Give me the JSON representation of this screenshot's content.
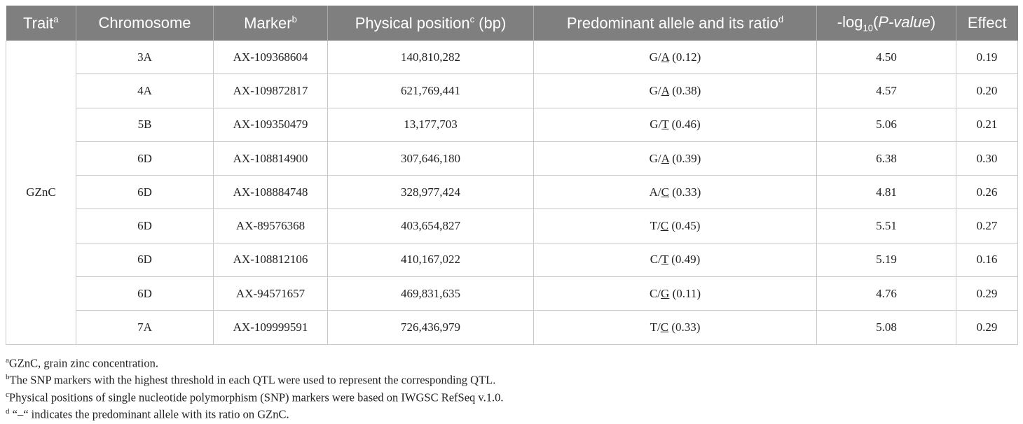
{
  "headers": {
    "trait": "Trait",
    "trait_sup": "a",
    "chromosome": "Chromosome",
    "marker": "Marker",
    "marker_sup": "b",
    "position": "Physical position",
    "position_sup": "c",
    "position_unit": " (bp)",
    "allele": "Predominant allele and its ratio",
    "allele_sup": "d",
    "logp_prefix": "-log",
    "logp_sub": "10",
    "logp_open": "(",
    "logp_italic": "P-value",
    "logp_close": ")",
    "effect": "Effect"
  },
  "trait_value": "GZnC",
  "rows": [
    {
      "chromosome": "3A",
      "marker": "AX-109368604",
      "position": "140,810,282",
      "allele_pre": "G/",
      "allele_u": "A",
      "allele_ratio": " (0.12)",
      "logp": "4.50",
      "effect": "0.19"
    },
    {
      "chromosome": "4A",
      "marker": "AX-109872817",
      "position": "621,769,441",
      "allele_pre": "G/",
      "allele_u": "A",
      "allele_ratio": " (0.38)",
      "logp": "4.57",
      "effect": "0.20"
    },
    {
      "chromosome": "5B",
      "marker": "AX-109350479",
      "position": "13,177,703",
      "allele_pre": "G/",
      "allele_u": "T",
      "allele_ratio": " (0.46)",
      "logp": "5.06",
      "effect": "0.21"
    },
    {
      "chromosome": "6D",
      "marker": "AX-108814900",
      "position": "307,646,180",
      "allele_pre": "G/",
      "allele_u": "A",
      "allele_ratio": " (0.39)",
      "logp": "6.38",
      "effect": "0.30"
    },
    {
      "chromosome": "6D",
      "marker": "AX-108884748",
      "position": "328,977,424",
      "allele_pre": "A/",
      "allele_u": "C",
      "allele_ratio": " (0.33)",
      "logp": "4.81",
      "effect": "0.26"
    },
    {
      "chromosome": "6D",
      "marker": "AX-89576368",
      "position": "403,654,827",
      "allele_pre": "T/",
      "allele_u": "C",
      "allele_ratio": " (0.45)",
      "logp": "5.51",
      "effect": "0.27"
    },
    {
      "chromosome": "6D",
      "marker": "AX-108812106",
      "position": "410,167,022",
      "allele_pre": "C/",
      "allele_u": "T",
      "allele_ratio": " (0.49)",
      "logp": "5.19",
      "effect": "0.16"
    },
    {
      "chromosome": "6D",
      "marker": "AX-94571657",
      "position": "469,831,635",
      "allele_pre": "C/",
      "allele_u": "G",
      "allele_ratio": " (0.11)",
      "logp": "4.76",
      "effect": "0.29"
    },
    {
      "chromosome": "7A",
      "marker": "AX-109999591",
      "position": "726,436,979",
      "allele_pre": "T/",
      "allele_u": "C",
      "allele_ratio": " (0.33)",
      "logp": "5.08",
      "effect": "0.29"
    }
  ],
  "footnotes": [
    {
      "sup": "a",
      "text": "GZnC, grain zinc concentration."
    },
    {
      "sup": "b",
      "text": "The SNP markers with the highest threshold in each QTL were used to represent the corresponding QTL."
    },
    {
      "sup": "c",
      "text": "Physical positions of single nucleotide polymorphism (SNP) markers were based on IWGSC RefSeq v.1.0."
    },
    {
      "sup": "d",
      "text": " “–“ indicates the predominant allele with its ratio on GZnC."
    }
  ],
  "colors": {
    "header_bg": "#7f7f7f",
    "header_text": "#ffffff",
    "grid": "#c8c8c8"
  }
}
